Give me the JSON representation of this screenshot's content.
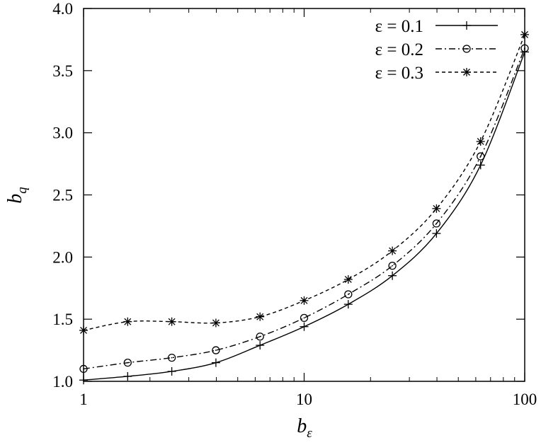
{
  "chart_data": {
    "type": "line",
    "xlabel": {
      "base": "b",
      "sub": "ε"
    },
    "ylabel": {
      "base": "b",
      "sub": "q"
    },
    "x_scale": "log",
    "xlim": [
      1,
      100
    ],
    "ylim": [
      1.0,
      4.0
    ],
    "x_ticks": [
      1,
      10,
      100
    ],
    "x_tick_labels": [
      "1",
      "10",
      "100"
    ],
    "y_ticks": [
      1.0,
      1.5,
      2.0,
      2.5,
      3.0,
      3.5,
      4.0
    ],
    "y_tick_labels": [
      "1.0",
      "1.5",
      "2.0",
      "2.5",
      "3.0",
      "3.5",
      "4.0"
    ],
    "grid": false,
    "legend_position": "top-right",
    "series": [
      {
        "name": "ε = 0.1",
        "line_style": "solid",
        "marker": "plus",
        "color": "#000000",
        "x": [
          1,
          1.585,
          2.512,
          3.981,
          6.31,
          10,
          15.85,
          25.12,
          39.81,
          63.1,
          100
        ],
        "y": [
          1.01,
          1.04,
          1.08,
          1.15,
          1.29,
          1.44,
          1.62,
          1.85,
          2.19,
          2.74,
          3.65
        ]
      },
      {
        "name": "ε = 0.2",
        "line_style": "dashdot",
        "marker": "circle",
        "color": "#000000",
        "x": [
          1,
          1.585,
          2.512,
          3.981,
          6.31,
          10,
          15.85,
          25.12,
          39.81,
          63.1,
          100
        ],
        "y": [
          1.1,
          1.15,
          1.19,
          1.25,
          1.36,
          1.51,
          1.7,
          1.93,
          2.27,
          2.81,
          3.68
        ]
      },
      {
        "name": "ε = 0.3",
        "line_style": "dashed",
        "marker": "star",
        "color": "#000000",
        "x": [
          1,
          1.585,
          2.512,
          3.981,
          6.31,
          10,
          15.85,
          25.12,
          39.81,
          63.1,
          100
        ],
        "y": [
          1.41,
          1.48,
          1.48,
          1.47,
          1.52,
          1.65,
          1.82,
          2.05,
          2.39,
          2.93,
          3.79
        ]
      }
    ]
  }
}
